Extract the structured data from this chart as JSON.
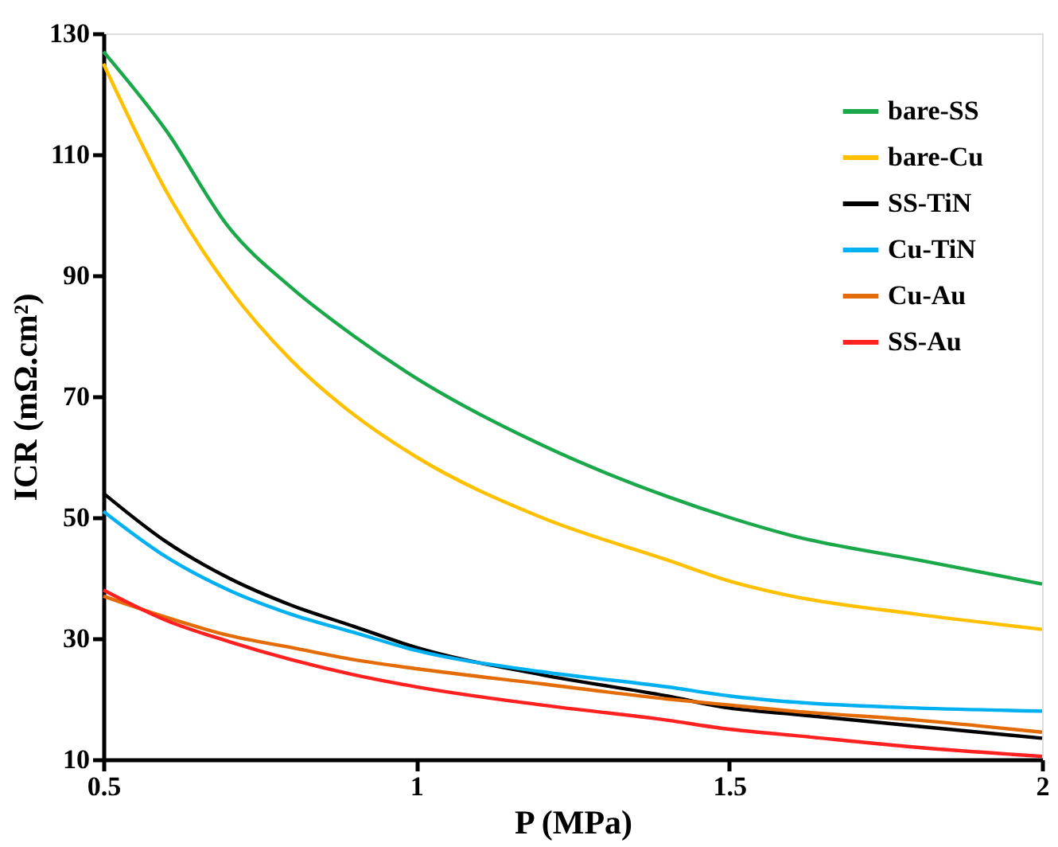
{
  "chart_data": {
    "type": "line",
    "xlabel": "P (MPa)",
    "ylabel": "ICR (mΩ.cm²)",
    "x": [
      0.5,
      0.6,
      0.7,
      0.8,
      0.9,
      1.0,
      1.2,
      1.4,
      1.5,
      1.6,
      1.8,
      2.0
    ],
    "series": [
      {
        "name": "bare-SS",
        "color": "#1aa84a",
        "values": [
          127,
          114,
          98,
          88,
          80,
          73,
          62,
          53.5,
          50,
          47,
          43,
          39
        ]
      },
      {
        "name": "bare-Cu",
        "color": "#ffc000",
        "values": [
          125,
          104,
          88,
          76,
          67,
          60,
          50,
          43,
          39.5,
          37,
          34,
          31.5
        ]
      },
      {
        "name": "SS-TiN",
        "color": "#000000",
        "values": [
          54,
          46,
          40,
          35.5,
          32,
          28.5,
          24,
          20.5,
          18.5,
          17.5,
          15.5,
          13.5
        ]
      },
      {
        "name": "Cu-TiN",
        "color": "#00b0f0",
        "values": [
          51,
          43.5,
          38,
          34,
          31,
          28,
          24.5,
          22,
          20.5,
          19.5,
          18.5,
          18
        ]
      },
      {
        "name": "Cu-Au",
        "color": "#e36c09",
        "values": [
          37,
          33.5,
          30.5,
          28.5,
          26.5,
          25,
          22.5,
          20,
          19,
          18,
          16.5,
          14.5
        ]
      },
      {
        "name": "SS-Au",
        "color": "#ff2020",
        "values": [
          38,
          33,
          29.5,
          26.5,
          24,
          22,
          19,
          16.5,
          15,
          14,
          12,
          10.5
        ]
      }
    ],
    "xlim": [
      0.5,
      2
    ],
    "xticks": [
      0.5,
      1,
      1.5,
      2
    ],
    "ylim": [
      10,
      130
    ],
    "yticks": [
      10,
      30,
      50,
      70,
      90,
      110,
      130
    ],
    "grid": false,
    "legend": "top right",
    "marker": "none",
    "line_style": "solid"
  }
}
